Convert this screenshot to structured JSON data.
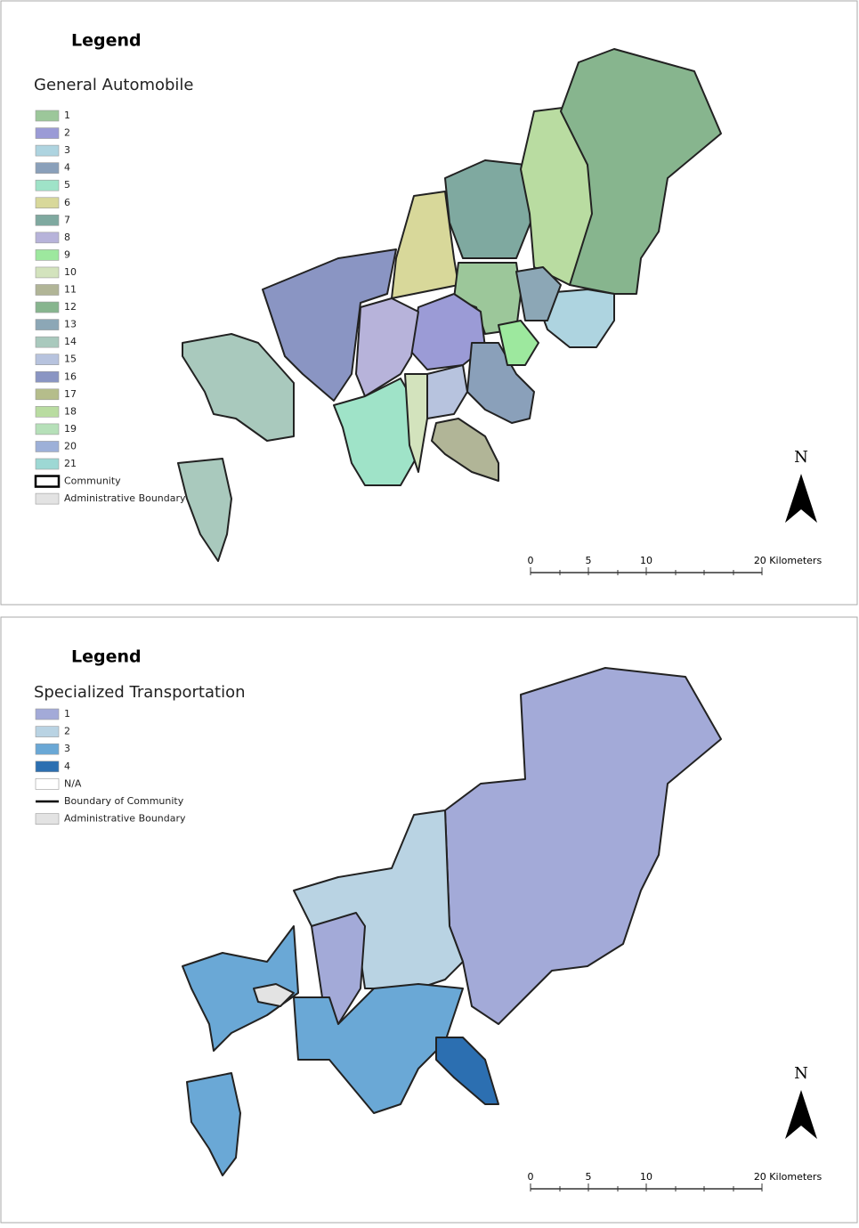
{
  "panels": [
    {
      "legend_title": "Legend",
      "subtitle": "General Automobile",
      "north": "N",
      "scale": [
        "0",
        "5",
        "10",
        "20 Kilometers"
      ],
      "items": [
        {
          "label": "1",
          "color": "#9cc79a"
        },
        {
          "label": "2",
          "color": "#9b9bd6"
        },
        {
          "label": "3",
          "color": "#aed4e0"
        },
        {
          "label": "4",
          "color": "#8aa0ba"
        },
        {
          "label": "5",
          "color": "#9fe3c8"
        },
        {
          "label": "6",
          "color": "#d8d89a"
        },
        {
          "label": "7",
          "color": "#7fa9a0"
        },
        {
          "label": "8",
          "color": "#b7b3da"
        },
        {
          "label": "9",
          "color": "#9de89e"
        },
        {
          "label": "10",
          "color": "#d3e3bd"
        },
        {
          "label": "11",
          "color": "#b1b597"
        },
        {
          "label": "12",
          "color": "#87b58e"
        },
        {
          "label": "13",
          "color": "#8ca7b6"
        },
        {
          "label": "14",
          "color": "#a9c9bd"
        },
        {
          "label": "15",
          "color": "#b7c3de"
        },
        {
          "label": "16",
          "color": "#8a95c3"
        },
        {
          "label": "17",
          "color": "#b5bd8b"
        },
        {
          "label": "18",
          "color": "#b9dca1"
        },
        {
          "label": "19",
          "color": "#b6e0b9"
        },
        {
          "label": "20",
          "color": "#9db0d8"
        },
        {
          "label": "21",
          "color": "#9dd8d4"
        },
        {
          "label": "Community",
          "color": "#ffffff",
          "style": "outline"
        },
        {
          "label": "Administrative Boundary",
          "color": "#e3e3e3"
        }
      ]
    },
    {
      "legend_title": "Legend",
      "subtitle": "Specialized Transportation",
      "north": "N",
      "scale": [
        "0",
        "5",
        "10",
        "20 Kilometers"
      ],
      "items": [
        {
          "label": "1",
          "color": "#a3aad8"
        },
        {
          "label": "2",
          "color": "#b9d3e3"
        },
        {
          "label": "3",
          "color": "#6aa8d6"
        },
        {
          "label": "4",
          "color": "#2c6fb1"
        },
        {
          "label": "N/A",
          "color": "#ffffff"
        },
        {
          "label": "Boundary of Community",
          "color": "#000000",
          "style": "line"
        },
        {
          "label": "Administrative Boundary",
          "color": "#e3e3e3"
        }
      ]
    }
  ]
}
